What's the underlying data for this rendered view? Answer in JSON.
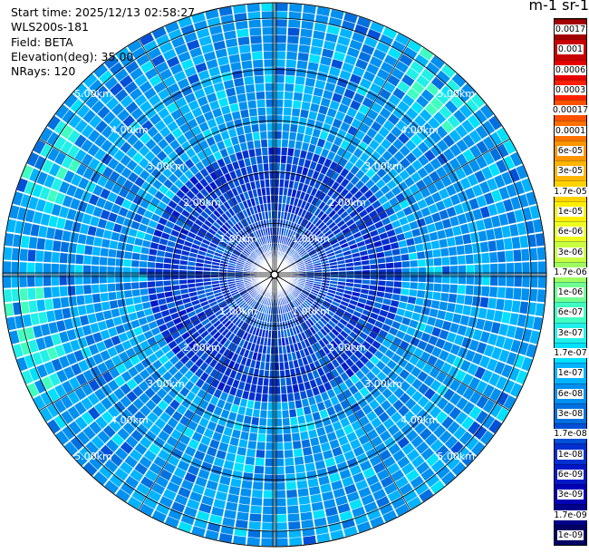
{
  "info": {
    "start_time": "Start time: 2025/12/13 02:58:27",
    "instrument": "WLS200s-181",
    "field": "Field: BETA",
    "elevation": "Elevation(deg): 35.00",
    "nrays": "NRays: 120"
  },
  "colorbar": {
    "units_label": "m-1 sr-1",
    "labels": [
      "0.0017",
      "0.001",
      "0.0006",
      "0.0003",
      "0.00017",
      "0.0001",
      "6e-05",
      "3e-05",
      "1.7e-05",
      "1e-05",
      "6e-06",
      "3e-06",
      "1.7e-06",
      "1e-06",
      "6e-07",
      "3e-07",
      "1.7e-07",
      "1e-07",
      "6e-08",
      "3e-08",
      "1.7e-08",
      "1e-08",
      "6e-09",
      "3e-09",
      "1.7e-09",
      "1e-09"
    ],
    "colors": [
      "#a00000",
      "#c80000",
      "#e60000",
      "#ff2000",
      "#ff5000",
      "#ff7000",
      "#ff9400",
      "#ffb400",
      "#ffd200",
      "#ffee00",
      "#eeff20",
      "#c8ff40",
      "#a0ff60",
      "#70ff90",
      "#40ffc0",
      "#20f0e8",
      "#00e0ff",
      "#00b4ff",
      "#0090f0",
      "#0070e0",
      "#0050d8",
      "#0030d0",
      "#0018c8",
      "#0000b4",
      "#00008c",
      "#000064"
    ]
  },
  "chart_data": {
    "type": "heatmap",
    "projection": "polar PPI",
    "range_rings_km": [
      1,
      2,
      3,
      4,
      5
    ],
    "range_ring_labels": [
      "1.00km",
      "2.00km",
      "3.00km",
      "4.00km",
      "5.00km"
    ],
    "max_range_km": 5.3,
    "nrays": 120,
    "elevation_deg": 35.0,
    "field": "BETA",
    "value_range": [
      1e-09,
      0.0017
    ],
    "scale": "log",
    "dominant_value_range": [
      1e-08,
      1e-07
    ],
    "enhanced_region_value": 1.7e-06
  }
}
